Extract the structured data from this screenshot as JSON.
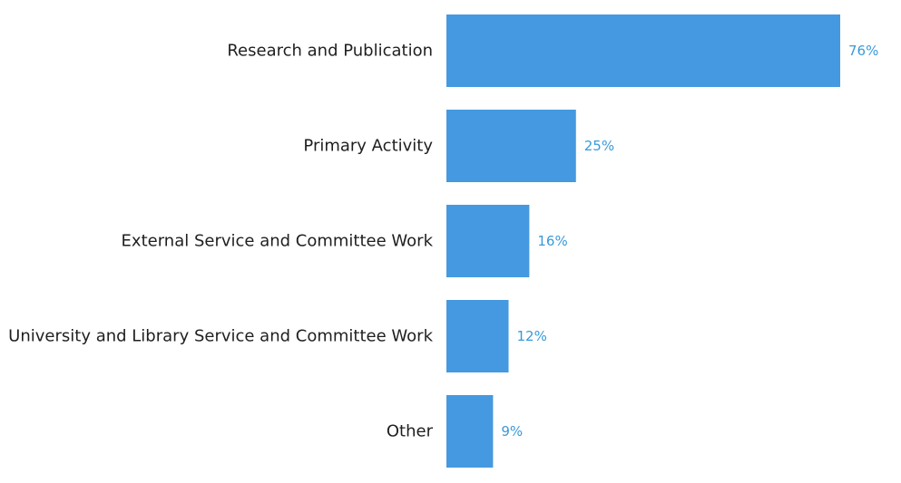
{
  "chart_data": {
    "type": "bar",
    "orientation": "horizontal",
    "categories": [
      "Research and Publication",
      "Primary Activity",
      "External Service and Committee Work",
      "University and Library Service and Committee Work",
      "Other"
    ],
    "values": [
      76,
      25,
      16,
      12,
      9
    ],
    "value_labels": [
      "76%",
      "25%",
      "16%",
      "12%",
      "9%"
    ],
    "xlim": [
      0,
      76
    ],
    "grid": false,
    "bar_color": "#4599e0",
    "label_color": "#3a9ad9",
    "text_color": "#1f1f1f"
  }
}
